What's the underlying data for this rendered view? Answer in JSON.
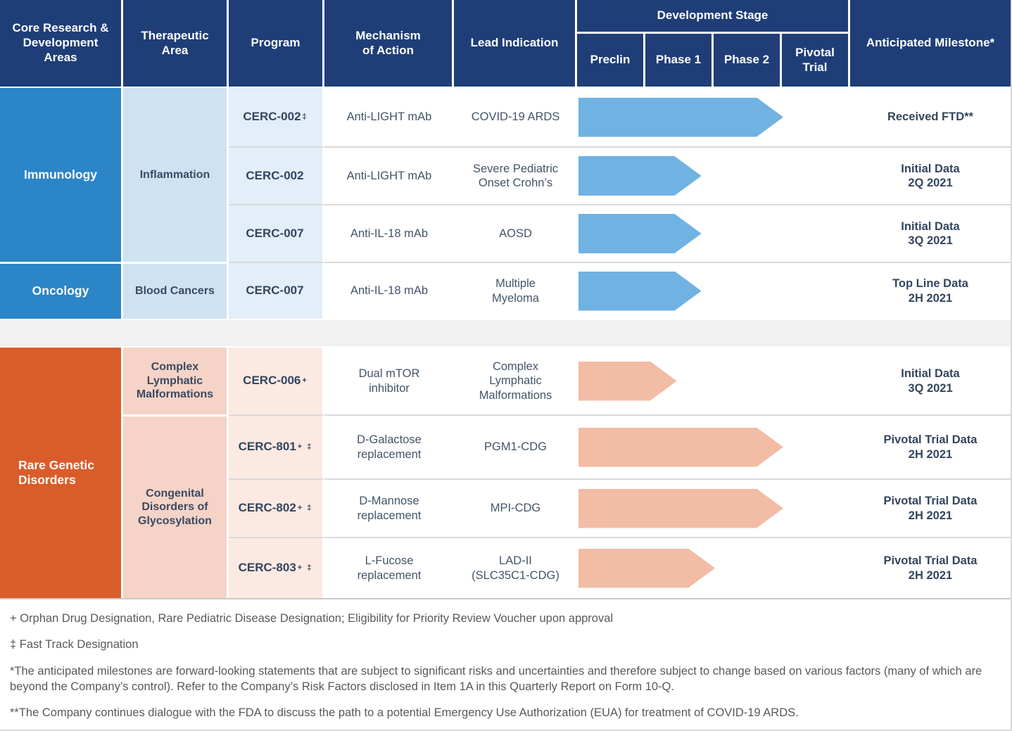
{
  "colors": {
    "header_navy": "#1F3E78",
    "section_blue": "#2C85C6",
    "therapeutic_light_blue": "#CDE3F2",
    "program_lighter_blue": "#E3EEF9",
    "arrow_blue": "#70B2E2",
    "section_orange": "#D95D2B",
    "therapeutic_light_pink": "#F5D3C6",
    "program_lighter_pink": "#FBE9E2",
    "arrow_salmon": "#F2BCA5",
    "spacer_gray": "#F1F1F1"
  },
  "headers": {
    "core": "Core Research &\nDevelopment\nAreas",
    "therapeutic": "Therapeutic\nArea",
    "program": "Program",
    "moa": "Mechanism\nof Action",
    "lead": "Lead Indication",
    "dev_stage": "Development Stage",
    "stages": [
      "Preclin",
      "Phase 1",
      "Phase 2",
      "Pivotal\nTrial"
    ],
    "milestone": "Anticipated Milestone*"
  },
  "areas": {
    "immunology": "Immunology",
    "oncology": "Oncology",
    "rare": "Rare Genetic Disorders"
  },
  "therapeutic_areas": {
    "inflammation": "Inflammation",
    "blood_cancers": "Blood Cancers",
    "complex_lymphatic": "Complex\nLymphatic\nMalformations",
    "congenital": "Congenital\nDisorders of\nGlycosylation"
  },
  "rows": [
    {
      "program": "CERC-002",
      "program_sup": "‡",
      "moa": "Anti-LIGHT mAb",
      "indication": "COVID-19 ARDS",
      "milestone": "Received FTD**",
      "progress_pct": 75,
      "arrow_color": "#70B2E2"
    },
    {
      "program": "CERC-002",
      "program_sup": "",
      "moa": "Anti-LIGHT mAb",
      "indication": "Severe Pediatric\nOnset Crohn’s",
      "milestone": "Initial Data\n2Q 2021",
      "progress_pct": 45,
      "arrow_color": "#70B2E2"
    },
    {
      "program": "CERC-007",
      "program_sup": "",
      "moa": "Anti-IL-18 mAb",
      "indication": "AOSD",
      "milestone": "Initial Data\n3Q 2021",
      "progress_pct": 45,
      "arrow_color": "#70B2E2"
    },
    {
      "program": "CERC-007",
      "program_sup": "",
      "moa": "Anti-IL-18 mAb",
      "indication": "Multiple\nMyeloma",
      "milestone": "Top Line Data\n2H 2021",
      "progress_pct": 45,
      "arrow_color": "#70B2E2"
    },
    {
      "program": "CERC-006",
      "program_sup": "+",
      "moa": "Dual mTOR\ninhibitor",
      "indication": "Complex\nLymphatic\nMalformations",
      "milestone": "Initial Data\n3Q 2021",
      "progress_pct": 36,
      "arrow_color": "#F2BCA5"
    },
    {
      "program": "CERC-801",
      "program_sup": "+ ‡",
      "moa": "D-Galactose\nreplacement",
      "indication": "PGM1-CDG",
      "milestone": "Pivotal Trial Data\n2H 2021",
      "progress_pct": 75,
      "arrow_color": "#F2BCA5"
    },
    {
      "program": "CERC-802",
      "program_sup": "+ ‡",
      "moa": "D-Mannose\nreplacement",
      "indication": "MPI-CDG",
      "milestone": "Pivotal Trial Data\n2H 2021",
      "progress_pct": 75,
      "arrow_color": "#F2BCA5"
    },
    {
      "program": "CERC-803",
      "program_sup": "+ ‡",
      "moa": "L-Fucose\nreplacement",
      "indication": "LAD-II\n(SLC35C1-CDG)",
      "milestone": "Pivotal Trial Data\n2H 2021",
      "progress_pct": 50,
      "arrow_color": "#F2BCA5"
    }
  ],
  "footnotes": [
    "+ Orphan Drug Designation, Rare Pediatric Disease Designation; Eligibility for Priority Review Voucher upon approval",
    "‡ Fast Track Designation",
    "*The anticipated milestones are forward-looking statements that are subject to significant risks and uncertainties and therefore subject to change based on various factors (many of which are beyond the Company’s control).  Refer to the Company’s Risk Factors disclosed in Item 1A in this Quarterly Report on Form 10-Q.",
    "**The Company continues dialogue with the FDA to discuss the path to a potential Emergency Use Authorization (EUA) for treatment of COVID-19 ARDS."
  ]
}
